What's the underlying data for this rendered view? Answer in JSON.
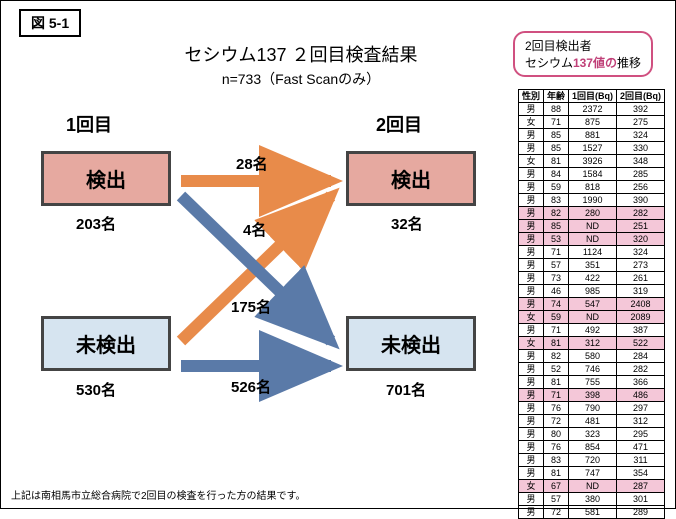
{
  "figure_label": "図 5-1",
  "title": "セシウム137 ２回目検査結果",
  "subtitle": "n=733（Fast Scanのみ）",
  "callout": {
    "line1": "2回目検出者",
    "line2_pre": "セシウム",
    "line2_hl": "137値の",
    "line2_post": "推移"
  },
  "diagram": {
    "col1_label": "1回目",
    "col2_label": "2回目",
    "box_detected": "検出",
    "box_undetected": "未検出",
    "count_1_detected": "203名",
    "count_1_undetected": "530名",
    "count_2_detected": "32名",
    "count_2_undetected": "701名",
    "flow_dd": "28名",
    "flow_ud": "4名",
    "flow_du": "175名",
    "flow_uu": "526名",
    "colors": {
      "red_fill": "#e6a9a0",
      "blue_fill": "#d6e4f0",
      "arrow_orange": "#e88b4a",
      "arrow_blue": "#5a7aa8"
    }
  },
  "table": {
    "headers": [
      "性別",
      "年齢",
      "1回目(Bq)",
      "2回目(Bq)"
    ],
    "rows": [
      {
        "c": [
          "男",
          "88",
          "2372",
          "392"
        ],
        "hl": false
      },
      {
        "c": [
          "女",
          "71",
          "875",
          "275"
        ],
        "hl": false
      },
      {
        "c": [
          "男",
          "85",
          "881",
          "324"
        ],
        "hl": false
      },
      {
        "c": [
          "男",
          "85",
          "1527",
          "330"
        ],
        "hl": false
      },
      {
        "c": [
          "女",
          "81",
          "3926",
          "348"
        ],
        "hl": false
      },
      {
        "c": [
          "男",
          "84",
          "1584",
          "285"
        ],
        "hl": false
      },
      {
        "c": [
          "男",
          "59",
          "818",
          "256"
        ],
        "hl": false
      },
      {
        "c": [
          "男",
          "83",
          "1990",
          "390"
        ],
        "hl": false
      },
      {
        "c": [
          "男",
          "82",
          "280",
          "282"
        ],
        "hl": true
      },
      {
        "c": [
          "男",
          "85",
          "ND",
          "251"
        ],
        "hl": true
      },
      {
        "c": [
          "男",
          "53",
          "ND",
          "320"
        ],
        "hl": true
      },
      {
        "c": [
          "男",
          "71",
          "1124",
          "324"
        ],
        "hl": false
      },
      {
        "c": [
          "男",
          "57",
          "351",
          "273"
        ],
        "hl": false
      },
      {
        "c": [
          "男",
          "73",
          "422",
          "261"
        ],
        "hl": false
      },
      {
        "c": [
          "男",
          "46",
          "985",
          "319"
        ],
        "hl": false
      },
      {
        "c": [
          "男",
          "74",
          "547",
          "2408"
        ],
        "hl": true
      },
      {
        "c": [
          "女",
          "59",
          "ND",
          "2089"
        ],
        "hl": true
      },
      {
        "c": [
          "男",
          "71",
          "492",
          "387"
        ],
        "hl": false
      },
      {
        "c": [
          "女",
          "81",
          "312",
          "522"
        ],
        "hl": true
      },
      {
        "c": [
          "男",
          "82",
          "580",
          "284"
        ],
        "hl": false
      },
      {
        "c": [
          "男",
          "52",
          "746",
          "282"
        ],
        "hl": false
      },
      {
        "c": [
          "男",
          "81",
          "755",
          "366"
        ],
        "hl": false
      },
      {
        "c": [
          "男",
          "71",
          "398",
          "486"
        ],
        "hl": true
      },
      {
        "c": [
          "男",
          "76",
          "790",
          "297"
        ],
        "hl": false
      },
      {
        "c": [
          "男",
          "72",
          "481",
          "312"
        ],
        "hl": false
      },
      {
        "c": [
          "男",
          "80",
          "323",
          "295"
        ],
        "hl": false
      },
      {
        "c": [
          "男",
          "76",
          "854",
          "471"
        ],
        "hl": false
      },
      {
        "c": [
          "男",
          "83",
          "720",
          "311"
        ],
        "hl": false
      },
      {
        "c": [
          "男",
          "81",
          "747",
          "354"
        ],
        "hl": false
      },
      {
        "c": [
          "女",
          "67",
          "ND",
          "287"
        ],
        "hl": true
      },
      {
        "c": [
          "男",
          "57",
          "380",
          "301"
        ],
        "hl": false
      },
      {
        "c": [
          "男",
          "72",
          "581",
          "289"
        ],
        "hl": false
      }
    ]
  },
  "footnote": "上記は南相馬市立総合病院で2回目の検査を行った方の結果です。"
}
